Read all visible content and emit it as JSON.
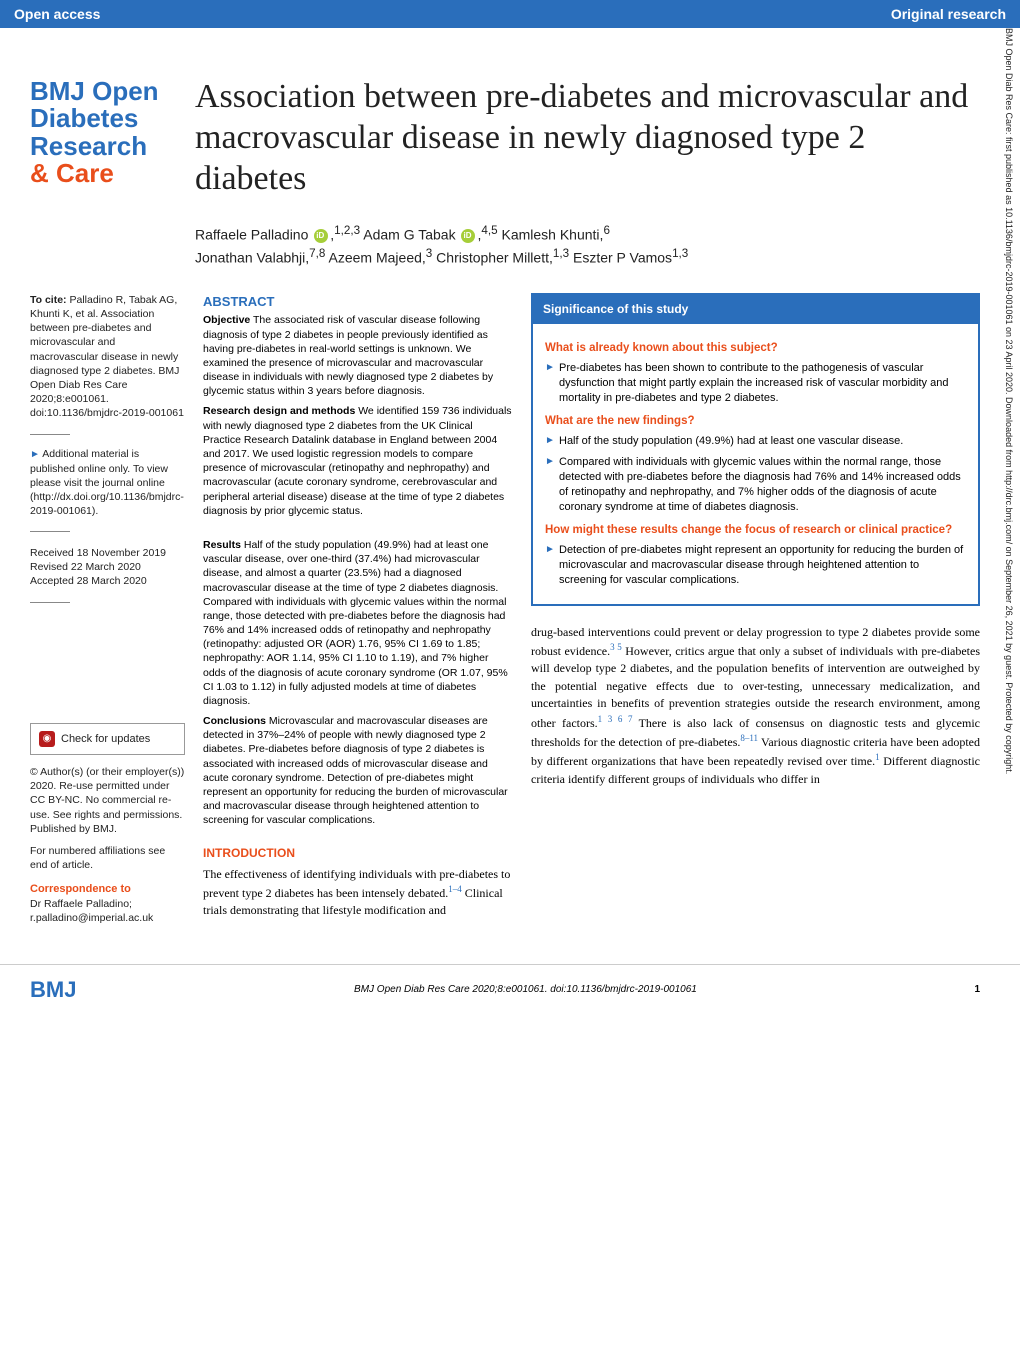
{
  "header": {
    "left": "Open access",
    "right": "Original research"
  },
  "journal": {
    "line1": "BMJ Open",
    "line2": "Diabetes",
    "line3": "Research",
    "line4": "& Care"
  },
  "title": "Association between pre-diabetes and microvascular and macrovascular disease in newly diagnosed type 2 diabetes",
  "authors": {
    "line1_a": "Raffaele Palladino",
    "line1_sup1": "1,2,3",
    "line1_b": " Adam G Tabak",
    "line1_sup2": "4,5",
    "line1_c": " Kamlesh Khunti,",
    "line1_sup3": "6",
    "line2_a": "Jonathan Valabhji,",
    "line2_sup1": "7,8",
    "line2_b": " Azeem Majeed,",
    "line2_sup2": "3",
    "line2_c": " Christopher Millett,",
    "line2_sup3": "1,3",
    "line2_d": " Eszter P Vamos",
    "line2_sup4": "1,3"
  },
  "sidebar": {
    "cite_bold": "To cite:",
    "cite_text": " Palladino R, Tabak AG, Khunti K, et al. Association between pre-diabetes and microvascular and macrovascular disease in newly diagnosed type 2 diabetes. BMJ Open Diab Res Care 2020;8:e001061. doi:10.1136/bmjdrc-2019-001061",
    "supp_arrow": "►",
    "supp_text": " Additional material is published online only. To view please visit the journal online (http://dx.doi.org/10.1136/bmjdrc-2019-001061).",
    "dates": "Received 18 November 2019\nRevised 22 March 2020\nAccepted 28 March 2020",
    "check_updates": "Check for updates",
    "license": "© Author(s) (or their employer(s)) 2020. Re-use permitted under CC BY-NC. No commercial re-use. See rights and permissions. Published by BMJ.",
    "affil_note": "For numbered affiliations see end of article.",
    "corr_head": "Correspondence to",
    "corr_text": "Dr Raffaele Palladino;\nr.palladino@imperial.ac.uk"
  },
  "abstract": {
    "head": "ABSTRACT",
    "objective_b": "Objective",
    "objective": " The associated risk of vascular disease following diagnosis of type 2 diabetes in people previously identified as having pre-diabetes in real-world settings is unknown. We examined the presence of microvascular and macrovascular disease in individuals with newly diagnosed type 2 diabetes by glycemic status within 3 years before diagnosis.",
    "design_b": "Research design and methods",
    "design": " We identified 159 736 individuals with newly diagnosed type 2 diabetes from the UK Clinical Practice Research Datalink database in England between 2004 and 2017. We used logistic regression models to compare presence of microvascular (retinopathy and nephropathy) and macrovascular (acute coronary syndrome, cerebrovascular and peripheral arterial disease) disease at the time of type 2 diabetes diagnosis by prior glycemic status.",
    "results_b": "Results",
    "results": " Half of the study population (49.9%) had at least one vascular disease, over one-third (37.4%) had microvascular disease, and almost a quarter (23.5%) had a diagnosed macrovascular disease at the time of type 2 diabetes diagnosis.\nCompared with individuals with glycemic values within the normal range, those detected with pre-diabetes before the diagnosis had 76% and 14% increased odds of retinopathy and nephropathy (retinopathy: adjusted OR (AOR) 1.76, 95% CI 1.69 to 1.85; nephropathy: AOR 1.14, 95% CI 1.10 to 1.19), and 7% higher odds of the diagnosis of acute coronary syndrome (OR 1.07, 95% CI 1.03 to 1.12) in fully adjusted models at time of diabetes diagnosis.",
    "conclusions_b": "Conclusions",
    "conclusions": " Microvascular and macrovascular diseases are detected in 37%–24% of people with newly diagnosed type 2 diabetes. Pre-diabetes before diagnosis of type 2 diabetes is associated with increased odds of microvascular disease and acute coronary syndrome. Detection of pre-diabetes might represent an opportunity for reducing the burden of microvascular and macrovascular disease through heightened attention to screening for vascular complications."
  },
  "intro": {
    "head": "INTRODUCTION",
    "text_a": "The effectiveness of identifying individuals with pre-diabetes to prevent type 2 diabetes has been intensely debated.",
    "sup1": "1–4",
    "text_b": " Clinical trials demonstrating that lifestyle modification and "
  },
  "significance": {
    "head": "Significance of this study",
    "q1": "What is already known about this subject?",
    "q1_items": [
      "Pre-diabetes has been shown to contribute to the pathogenesis of vascular dysfunction that might partly explain the increased risk of vascular morbidity and mortality in pre-diabetes and type 2 diabetes."
    ],
    "q2": "What are the new findings?",
    "q2_items": [
      "Half of the study population (49.9%) had at least one vascular disease.",
      "Compared with individuals with glycemic values within the normal range, those detected with pre-diabetes before the diagnosis had 76% and 14% increased odds of retinopathy and nephropathy, and 7% higher odds of the diagnosis of acute coronary syndrome at time of diabetes diagnosis."
    ],
    "q3": "How might these results change the focus of research or clinical practice?",
    "q3_items": [
      "Detection of pre-diabetes might represent an opportunity for reducing the burden of microvascular and macrovascular disease through heightened attention to screening for vascular complications."
    ]
  },
  "body_right": {
    "text_a": "drug-based interventions could prevent or delay progression to type 2 diabetes provide some robust evidence.",
    "sup1": "3 5",
    "text_b": " However, critics argue that only a subset of individuals with pre-diabetes will develop type 2 diabetes, and the population benefits of intervention are outweighed by the potential negative effects due to over-testing, unnecessary medicalization, and uncertainties in benefits of prevention strategies outside the research environment, among other factors.",
    "sup2": "1 3 6 7",
    "text_c": " There is also lack of consensus on diagnostic tests and glycemic thresholds for the detection of pre-diabetes.",
    "sup3": "8–11",
    "text_d": " Various diagnostic criteria have been adopted by different organizations that have been repeatedly revised over time.",
    "sup4": "1",
    "text_e": " Different diagnostic criteria identify different groups of individuals who differ in"
  },
  "footer": {
    "logo": "BMJ",
    "center": "BMJ Open Diab Res Care 2020;8:e001061. doi:10.1136/bmjdrc-2019-001061",
    "page": "1"
  },
  "side_vertical": "BMJ Open Diab Res Care: first published as 10.1136/bmjdrc-2019-001061 on 23 April 2020. Downloaded from http://drc.bmj.com/ on September 26, 2021 by guest. Protected by copyright."
}
